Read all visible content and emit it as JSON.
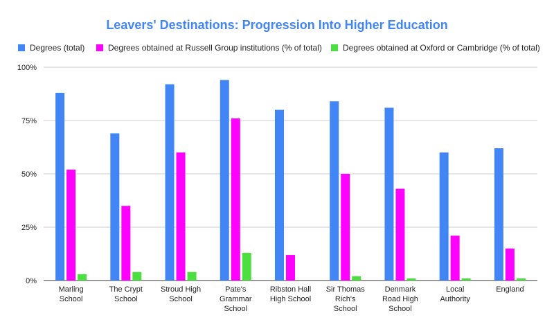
{
  "chart_data": {
    "type": "bar",
    "title": "Leavers' Destinations: Progression Into Higher Education",
    "title_color": "#4285f4",
    "xlabel": "",
    "ylabel": "",
    "ylim": [
      0,
      100
    ],
    "yticks": [
      0,
      25,
      50,
      75,
      100
    ],
    "ytick_labels": [
      "0%",
      "25%",
      "50%",
      "75%",
      "100%"
    ],
    "grid": true,
    "legend_position": "top",
    "categories": [
      [
        "Marling",
        "School"
      ],
      [
        "The Crypt",
        "School"
      ],
      [
        "Stroud High",
        "School"
      ],
      [
        "Pate's",
        "Grammar",
        "School"
      ],
      [
        "Ribston Hall",
        "High School"
      ],
      [
        "Sir Thomas",
        "Rich's",
        "School"
      ],
      [
        "Denmark",
        "Road High",
        "School"
      ],
      [
        "Local",
        "Authority"
      ],
      [
        "England"
      ]
    ],
    "series": [
      {
        "name": "Degrees (total)",
        "color": "#4285f4",
        "values": [
          88,
          69,
          92,
          94,
          80,
          84,
          81,
          60,
          62
        ]
      },
      {
        "name": "Degrees obtained at Russell Group institutions (% of total)",
        "color": "#ff00ff",
        "values": [
          52,
          35,
          60,
          76,
          12,
          50,
          43,
          21,
          15
        ]
      },
      {
        "name": "Degrees obtained at Oxford or Cambridge (% of total)",
        "color": "#4ddf42",
        "values": [
          3,
          4,
          4,
          13,
          0,
          2,
          1,
          1,
          1
        ]
      }
    ]
  }
}
